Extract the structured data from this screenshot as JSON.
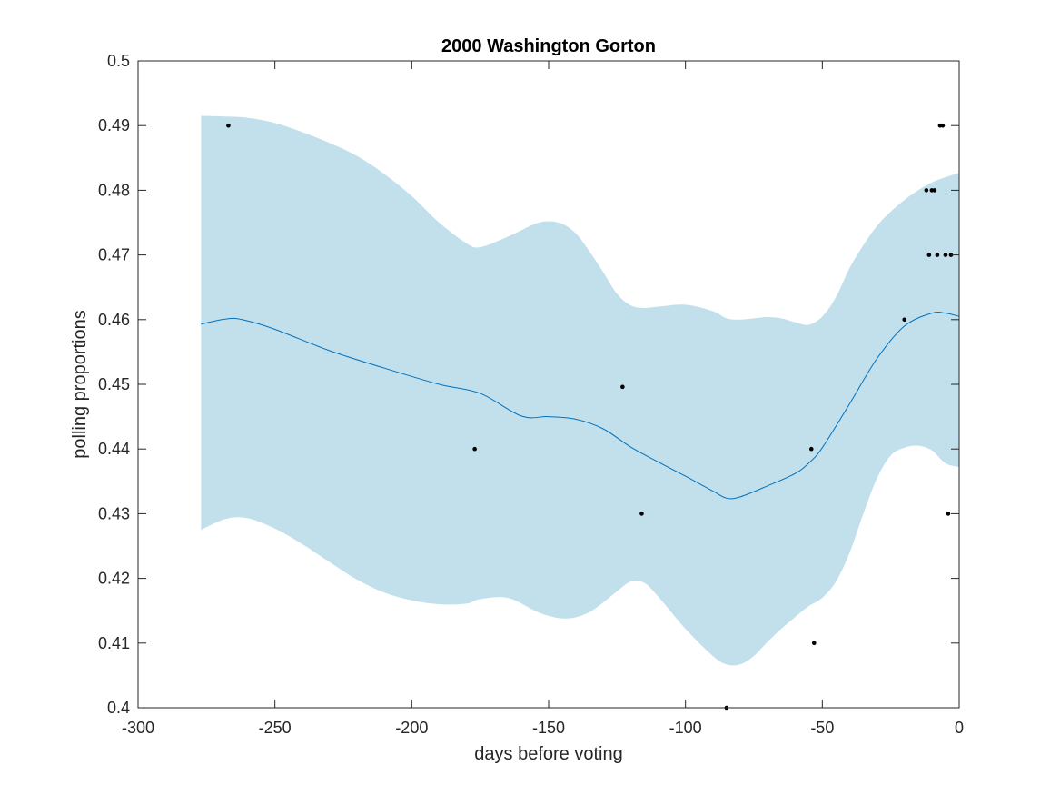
{
  "chart_data": {
    "type": "line",
    "title": "2000 Washington Gorton",
    "xlabel": "days before voting",
    "ylabel": "polling proportions",
    "xlim": [
      -300,
      0
    ],
    "ylim": [
      0.4,
      0.5
    ],
    "xticks": [
      -300,
      -250,
      -200,
      -150,
      -100,
      -50,
      0
    ],
    "xtick_labels": [
      "-300",
      "-250",
      "-200",
      "-150",
      "-100",
      "-50",
      "0"
    ],
    "yticks": [
      0.4,
      0.41,
      0.42,
      0.43,
      0.44,
      0.45,
      0.46,
      0.47,
      0.48,
      0.49,
      0.5
    ],
    "ytick_labels": [
      "0.4",
      "0.41",
      "0.42",
      "0.43",
      "0.44",
      "0.45",
      "0.46",
      "0.47",
      "0.48",
      "0.49",
      "0.5"
    ],
    "grid": false,
    "colors": {
      "band": "#c2dfec",
      "line": "#0072bd",
      "points": "#000000",
      "axes": "#262626"
    },
    "band": {
      "x": [
        -277,
        -268,
        -260,
        -250,
        -240,
        -230,
        -220,
        -210,
        -200,
        -190,
        -180,
        -175,
        -165,
        -155,
        -150,
        -145,
        -140,
        -135,
        -130,
        -125,
        -120,
        -115,
        -110,
        -100,
        -90,
        -85,
        -80,
        -75,
        -70,
        -65,
        -60,
        -55,
        -50,
        -45,
        -40,
        -35,
        -30,
        -25,
        -20,
        -15,
        -10,
        -5,
        0
      ],
      "upper": [
        0.4915,
        0.4914,
        0.4912,
        0.4904,
        0.489,
        0.4873,
        0.4853,
        0.4825,
        0.4791,
        0.475,
        0.4718,
        0.4712,
        0.4728,
        0.4748,
        0.4752,
        0.4748,
        0.4733,
        0.4705,
        0.4673,
        0.464,
        0.4622,
        0.4618,
        0.462,
        0.4623,
        0.4613,
        0.4602,
        0.46,
        0.4602,
        0.4604,
        0.4602,
        0.4596,
        0.4592,
        0.4605,
        0.4635,
        0.468,
        0.4715,
        0.4745,
        0.4767,
        0.4785,
        0.48,
        0.4812,
        0.482,
        0.4827
      ],
      "lower": [
        0.4275,
        0.4292,
        0.4293,
        0.4277,
        0.4253,
        0.4225,
        0.4198,
        0.4178,
        0.4166,
        0.416,
        0.4161,
        0.4168,
        0.417,
        0.415,
        0.4142,
        0.4138,
        0.414,
        0.4148,
        0.4163,
        0.418,
        0.4195,
        0.4193,
        0.4172,
        0.4122,
        0.408,
        0.4067,
        0.4067,
        0.408,
        0.4102,
        0.4122,
        0.414,
        0.4157,
        0.417,
        0.4195,
        0.424,
        0.43,
        0.4355,
        0.439,
        0.4402,
        0.4405,
        0.4398,
        0.4378,
        0.4372
      ]
    },
    "series": [
      {
        "x": [
          -277,
          -268,
          -262,
          -250,
          -230,
          -210,
          -190,
          -175,
          -160,
          -150,
          -140,
          -130,
          -120,
          -110,
          -100,
          -90,
          -85,
          -80,
          -70,
          -60,
          -55,
          -50,
          -40,
          -30,
          -20,
          -10,
          -5,
          0
        ],
        "values": [
          0.4593,
          0.4601,
          0.46,
          0.4585,
          0.4552,
          0.4525,
          0.45,
          0.4486,
          0.4451,
          0.445,
          0.4446,
          0.4431,
          0.4403,
          0.438,
          0.4358,
          0.4335,
          0.4324,
          0.4326,
          0.4343,
          0.4362,
          0.4378,
          0.4402,
          0.447,
          0.454,
          0.459,
          0.461,
          0.461,
          0.4605
        ]
      }
    ],
    "points": [
      [
        -267,
        0.49
      ],
      [
        -177,
        0.44
      ],
      [
        -123,
        0.4496
      ],
      [
        -116,
        0.43
      ],
      [
        -85,
        0.4
      ],
      [
        -54,
        0.44
      ],
      [
        -53,
        0.41
      ],
      [
        -20,
        0.46
      ],
      [
        -12,
        0.48
      ],
      [
        -11,
        0.47
      ],
      [
        -10,
        0.48
      ],
      [
        -9,
        0.48
      ],
      [
        -8,
        0.47
      ],
      [
        -7,
        0.49
      ],
      [
        -6,
        0.49
      ],
      [
        -5,
        0.47
      ],
      [
        -4,
        0.43
      ],
      [
        -3,
        0.47
      ]
    ]
  }
}
